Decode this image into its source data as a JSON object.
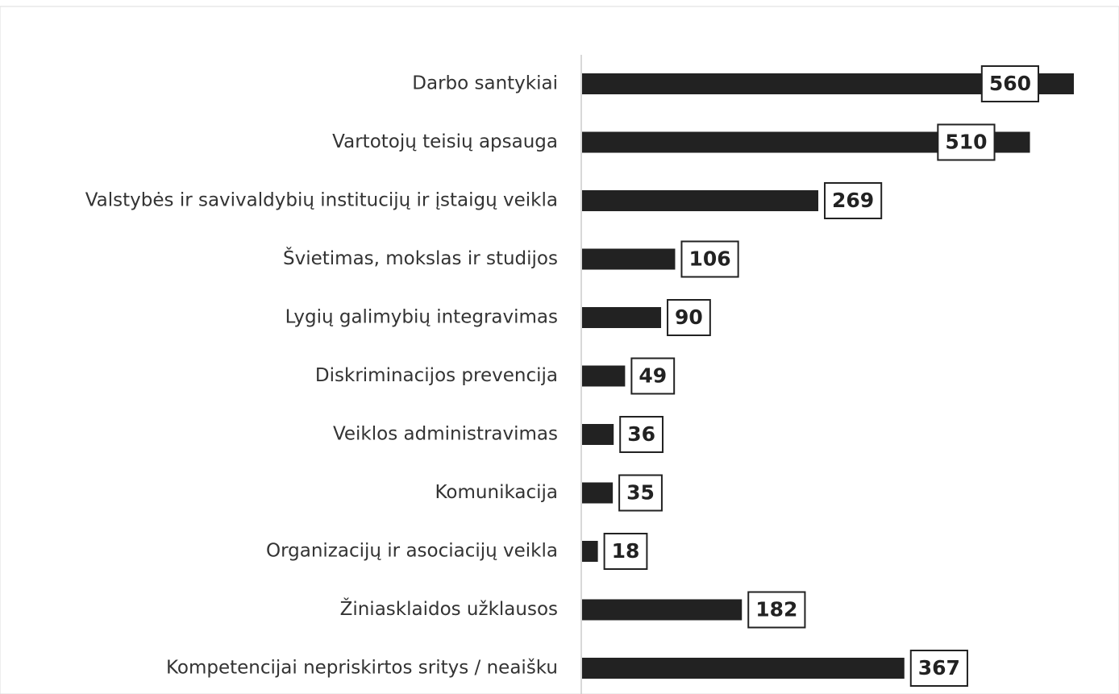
{
  "chart_data": {
    "type": "bar",
    "orientation": "horizontal",
    "categories": [
      "Darbo santykiai",
      "Vartotojų teisių apsauga",
      "Valstybės ir savivaldybių institucijų ir įstaigų veikla",
      "Švietimas, mokslas ir studijos",
      "Lygių galimybių integravimas",
      "Diskriminacijos prevencija",
      "Veiklos administravimas",
      "Komunikacija",
      "Organizacijų ir asociacijų veikla",
      "Žiniasklaidos užklausos",
      "Kompetencijai nepriskirtos sritys / neaišku"
    ],
    "values": [
      560,
      510,
      269,
      106,
      90,
      49,
      36,
      35,
      18,
      182,
      367
    ],
    "color": "#222222",
    "xlim": [
      0,
      560
    ]
  }
}
